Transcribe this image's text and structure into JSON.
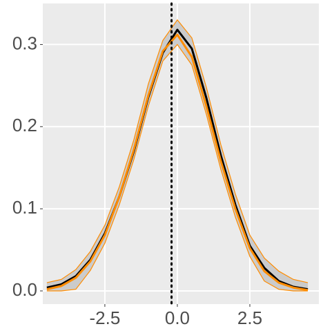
{
  "chart_data": {
    "type": "line",
    "x": [
      -4.5,
      -4,
      -3.5,
      -3,
      -2.5,
      -2,
      -1.5,
      -1,
      -0.5,
      0,
      0.5,
      1,
      1.5,
      2,
      2.5,
      3,
      3.5,
      4,
      4.5
    ],
    "series": [
      {
        "color": "#000000",
        "values": [
          0.004,
          0.008,
          0.018,
          0.038,
          0.07,
          0.115,
          0.17,
          0.236,
          0.29,
          0.318,
          0.295,
          0.235,
          0.165,
          0.105,
          0.055,
          0.028,
          0.012,
          0.005,
          0.002
        ]
      },
      {
        "color": "#ff8c00",
        "values": [
          0.002,
          0.006,
          0.016,
          0.036,
          0.068,
          0.115,
          0.172,
          0.238,
          0.292,
          0.312,
          0.285,
          0.225,
          0.158,
          0.1,
          0.052,
          0.024,
          0.01,
          0.004,
          0.001
        ]
      }
    ],
    "band": {
      "lower": [
        0,
        0,
        0.002,
        0.025,
        0.058,
        0.105,
        0.16,
        0.225,
        0.28,
        0.3,
        0.275,
        0.215,
        0.148,
        0.09,
        0.042,
        0.012,
        0.002,
        0,
        0
      ],
      "upper": [
        0.01,
        0.014,
        0.026,
        0.048,
        0.08,
        0.127,
        0.184,
        0.252,
        0.305,
        0.33,
        0.308,
        0.248,
        0.178,
        0.118,
        0.068,
        0.04,
        0.024,
        0.014,
        0.01
      ],
      "fill": "#c8c8c8",
      "color": "#ff8c00"
    },
    "vline": {
      "x": -0.2,
      "color": "#000000"
    },
    "xlim": [
      -4.64,
      4.88
    ],
    "ylim": [
      -0.016,
      0.35
    ],
    "xticks": [
      -2.5,
      {
        "value": 0,
        "label": "0.0"
      },
      2.5
    ],
    "yticks": [
      {
        "value": 0,
        "label": "0.0"
      },
      0.1,
      0.2,
      0.3
    ],
    "grid": true
  }
}
